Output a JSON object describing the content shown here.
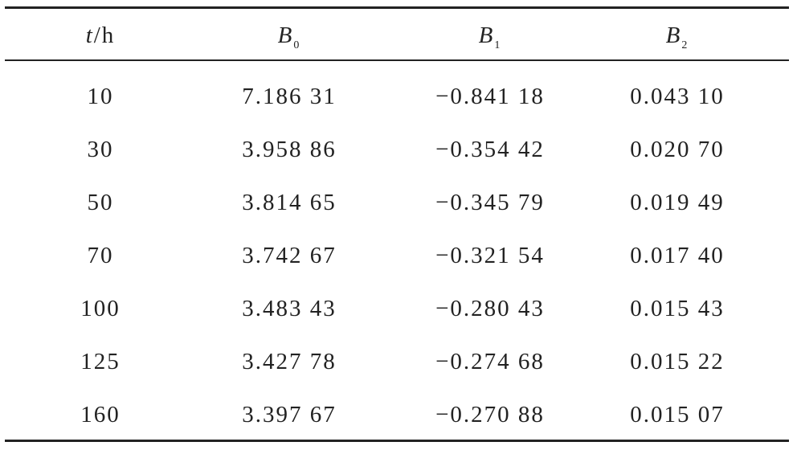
{
  "table": {
    "header": [
      {
        "symbol": "t",
        "unit": "/h"
      },
      {
        "symbol": "B",
        "subscript": "0"
      },
      {
        "symbol": "B",
        "subscript": "1"
      },
      {
        "symbol": "B",
        "subscript": "2"
      }
    ],
    "rows": [
      [
        "10",
        "7.186 31",
        "−0.841 18",
        "0.043 10"
      ],
      [
        "30",
        "3.958 86",
        "−0.354 42",
        "0.020 70"
      ],
      [
        "50",
        "3.814 65",
        "−0.345 79",
        "0.019 49"
      ],
      [
        "70",
        "3.742 67",
        "−0.321 54",
        "0.017 40"
      ],
      [
        "100",
        "3.483 43",
        "−0.280 43",
        "0.015 43"
      ],
      [
        "125",
        "3.427 78",
        "−0.274 68",
        "0.015 22"
      ],
      [
        "160",
        "3.397 67",
        "−0.270 88",
        "0.015 07"
      ]
    ]
  }
}
